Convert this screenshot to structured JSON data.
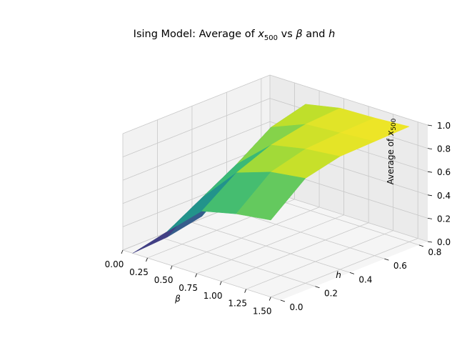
{
  "chart_data": {
    "type": "surface3d",
    "title": "Ising Model: Average of x500 vs β and h",
    "title_parts": {
      "prefix": "Ising Model: Average of ",
      "x": "x",
      "x_sub": "500",
      "vs": " vs ",
      "beta": "β",
      "and": " and ",
      "h": "h"
    },
    "xlabel": "β",
    "ylabel": "h",
    "zlabel": "Average of x500",
    "zlabel_parts": {
      "text": "Average of ",
      "x": "x",
      "x_sub": "500"
    },
    "x_ticks": [
      "0.00",
      "0.25",
      "0.50",
      "0.75",
      "1.00",
      "1.25",
      "1.50"
    ],
    "y_ticks": [
      "0.0",
      "0.2",
      "0.4",
      "0.6",
      "0.8"
    ],
    "z_ticks": [
      "0.0",
      "0.2",
      "0.4",
      "0.6",
      "0.8",
      "1.0"
    ],
    "xlim": [
      0,
      1.6
    ],
    "ylim": [
      0,
      0.85
    ],
    "zlim": [
      0,
      1.0
    ],
    "grid": true,
    "colormap": "viridis",
    "beta": [
      0.1,
      0.45,
      0.8,
      1.15,
      1.5
    ],
    "h": [
      0.0,
      0.2,
      0.4,
      0.6,
      0.8
    ],
    "z": [
      [
        0.0,
        0.02,
        0.08,
        0.3,
        0.5
      ],
      [
        0.28,
        0.45,
        0.62,
        0.82,
        0.9
      ],
      [
        0.55,
        0.76,
        0.88,
        0.94,
        0.96
      ],
      [
        0.62,
        0.86,
        0.94,
        0.96,
        0.97
      ],
      [
        0.66,
        0.9,
        0.97,
        0.98,
        0.99
      ]
    ]
  }
}
